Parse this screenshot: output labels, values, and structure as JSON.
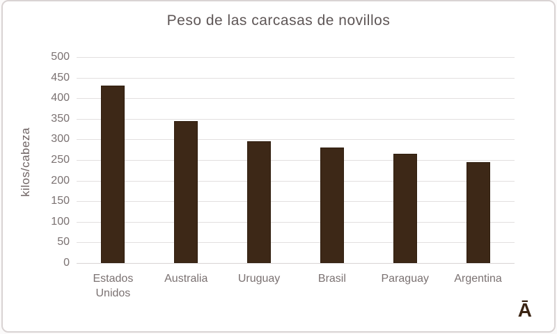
{
  "chart_data": {
    "type": "bar",
    "title": "Peso de las carcasas de novillos",
    "xlabel": "",
    "ylabel": "kilos/cabeza",
    "categories": [
      "Estados Unidos",
      "Australia",
      "Uruguay",
      "Brasil",
      "Paraguay",
      "Argentina"
    ],
    "values": [
      430,
      345,
      295,
      280,
      265,
      245
    ],
    "ylim": [
      0,
      500
    ],
    "ytick_step": 50,
    "grid": true,
    "legend_position": "none"
  },
  "annotations": {
    "corner_letter": "Ā"
  },
  "colors": {
    "bar": "#3d2817",
    "bar_edge": "#2f1d0e",
    "title_text": "#5e5656",
    "axis_text": "#7a7171",
    "y_axis_title_text": "#6e6363",
    "gridline": "#e2dfdf",
    "chart_border": "#d9d3d3",
    "background": "#ffffff",
    "corner_letter": "#3a2413"
  }
}
